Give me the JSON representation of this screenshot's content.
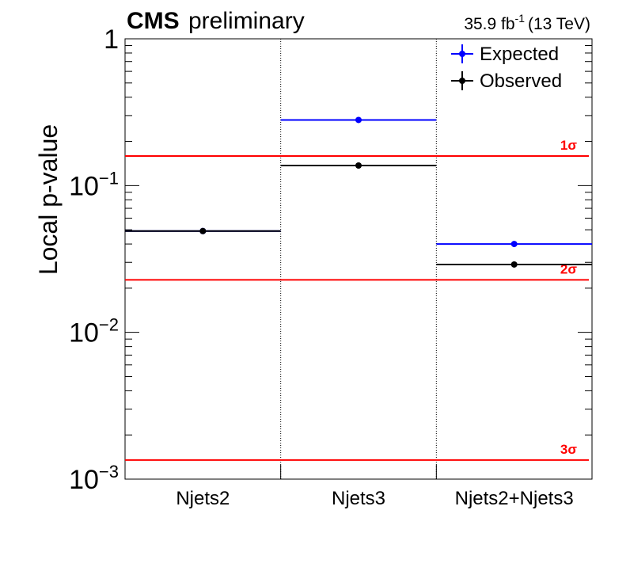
{
  "header": {
    "cms": "CMS",
    "preliminary": "preliminary",
    "lumi_value": "35.9 fb",
    "lumi_exp": "-1",
    "lumi_energy": "(13 TeV)"
  },
  "chart_data": {
    "type": "scatter",
    "ylabel": "Local p-value",
    "yscale": "log",
    "ylim": [
      0.001,
      1
    ],
    "y_tick_labels": [
      {
        "base": "10",
        "exp": "−3"
      },
      {
        "base": "10",
        "exp": "−2"
      },
      {
        "base": "10",
        "exp": "−1"
      },
      {
        "base": "1",
        "exp": ""
      }
    ],
    "categories": [
      "Njets2",
      "Njets3",
      "Njets2+Njets3"
    ],
    "series": [
      {
        "name": "Expected",
        "color": "#0000ff",
        "values": [
          0.049,
          0.28,
          0.04
        ]
      },
      {
        "name": "Observed",
        "color": "#000000",
        "values": [
          0.049,
          0.137,
          0.029
        ]
      }
    ],
    "significance_lines": [
      {
        "label": "1σ",
        "value": 0.159,
        "color": "#ff0000"
      },
      {
        "label": "2σ",
        "value": 0.0228,
        "color": "#ff0000"
      },
      {
        "label": "3σ",
        "value": 0.00135,
        "color": "#ff0000"
      }
    ],
    "legend_position": "top-right"
  }
}
